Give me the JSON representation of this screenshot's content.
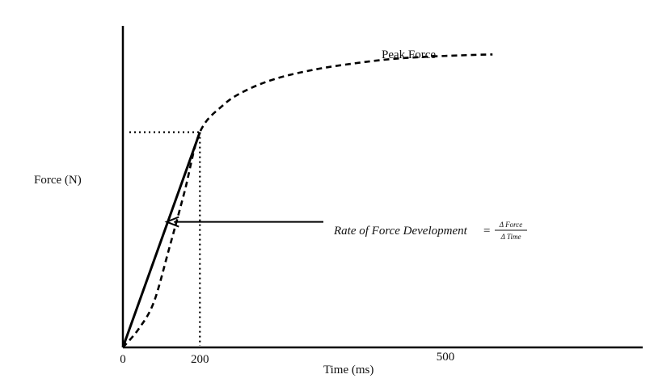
{
  "chart_data": {
    "type": "line",
    "title": "",
    "xlabel": "Time (ms)",
    "ylabel": "Force (N)",
    "x_ticks": [
      "0",
      "200",
      "500"
    ],
    "xlim": [
      0,
      1350
    ],
    "ylim": [
      0,
      100
    ],
    "grid": false,
    "series": [
      {
        "style": "dashed",
        "x": [
          0,
          40,
          80,
          120,
          160,
          200,
          260,
          320,
          400,
          500,
          600,
          700,
          800,
          900,
          960
        ],
        "y": [
          0,
          6,
          15,
          33,
          52,
          72,
          81,
          86,
          90,
          93,
          95,
          96.5,
          97.3,
          97.8,
          98
        ]
      }
    ],
    "tangent_line": {
      "x": [
        0,
        200
      ],
      "y": [
        0,
        72
      ]
    },
    "reference_point": {
      "x": 200,
      "y": 72
    },
    "annotations": {
      "peak": "Peak Force",
      "rfd_label": "Rate of Force Development",
      "equals": "=",
      "numerator": "Δ Force",
      "denominator": "Δ Time",
      "arrow_target": {
        "x": 116,
        "y": 42
      }
    }
  }
}
